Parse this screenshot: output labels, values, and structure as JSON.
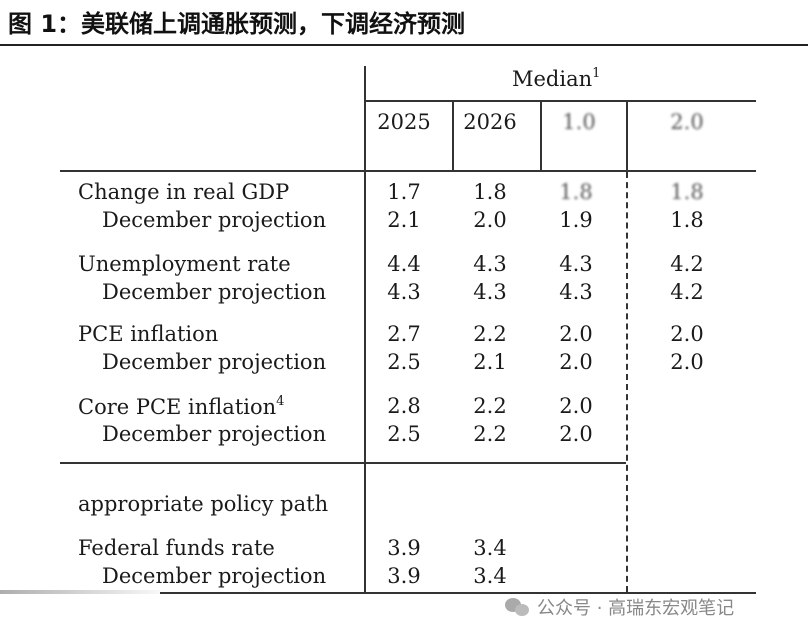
{
  "header": {
    "title": "图 1：美联储上调通胀预测，下调经济预测"
  },
  "table": {
    "median_label": "Median",
    "median_sup": "1",
    "columns": [
      "2025",
      "2026",
      "1.0",
      "2.0"
    ],
    "rows": [
      {
        "label": "Change in real GDP",
        "sup": "",
        "values": [
          "1.7",
          "1.8",
          "1.8",
          "1.8"
        ],
        "indent": false
      },
      {
        "label": "December projection",
        "sup": "",
        "values": [
          "2.1",
          "2.0",
          "1.9",
          "1.8"
        ],
        "indent": true
      },
      {
        "label": "Unemployment rate",
        "sup": "",
        "values": [
          "4.4",
          "4.3",
          "4.3",
          "4.2"
        ],
        "indent": false
      },
      {
        "label": "December projection",
        "sup": "",
        "values": [
          "4.3",
          "4.3",
          "4.3",
          "4.2"
        ],
        "indent": true
      },
      {
        "label": "PCE inflation",
        "sup": "",
        "values": [
          "2.7",
          "2.2",
          "2.0",
          "2.0"
        ],
        "indent": false
      },
      {
        "label": "December projection",
        "sup": "",
        "values": [
          "2.5",
          "2.1",
          "2.0",
          "2.0"
        ],
        "indent": true
      },
      {
        "label": "Core PCE inflation",
        "sup": "4",
        "values": [
          "2.8",
          "2.2",
          "2.0",
          ""
        ],
        "indent": false
      },
      {
        "label": "December projection",
        "sup": "",
        "values": [
          "2.5",
          "2.2",
          "2.0",
          ""
        ],
        "indent": true
      }
    ],
    "section2_label": "appropriate policy path",
    "rows2": [
      {
        "label": "Federal funds rate",
        "values": [
          "3.9",
          "3.4",
          "",
          ""
        ],
        "indent": false
      },
      {
        "label": "December projection",
        "values": [
          "3.9",
          "3.4",
          "",
          ""
        ],
        "indent": true
      }
    ]
  },
  "watermark": {
    "text": "公众号 · 高瑞东宏观笔记",
    "icon": "wechat-icon"
  }
}
